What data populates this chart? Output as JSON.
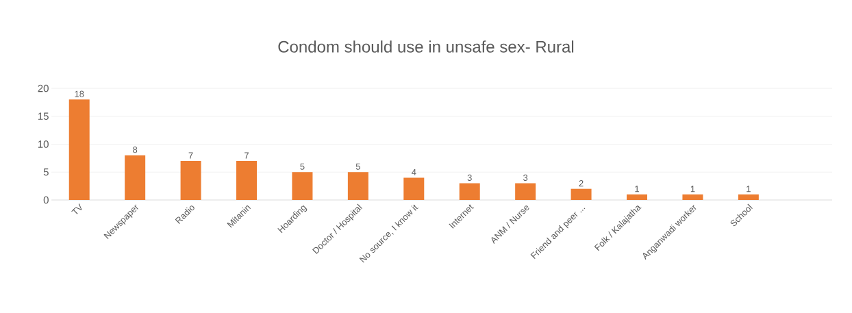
{
  "chart_data": {
    "type": "bar",
    "title": "Condom should use in unsafe sex- Rural",
    "categories": [
      "TV",
      "Newspaper",
      "Radio",
      "Mitanin",
      "Hoarding",
      "Doctor / Hospital",
      "No source, I know it",
      "Internet",
      "ANM / Nurse",
      "Friend and peer ...",
      "Folk / Kalajatha",
      "Anganwadi worker",
      "School",
      null
    ],
    "values": [
      18,
      8,
      7,
      7,
      5,
      5,
      4,
      3,
      3,
      2,
      1,
      1,
      1,
      null
    ],
    "color": "#ed7d31",
    "ylim": [
      0,
      20
    ],
    "yticks": [
      0,
      5,
      10,
      15,
      20
    ],
    "grid": "y",
    "data_labels": true
  }
}
